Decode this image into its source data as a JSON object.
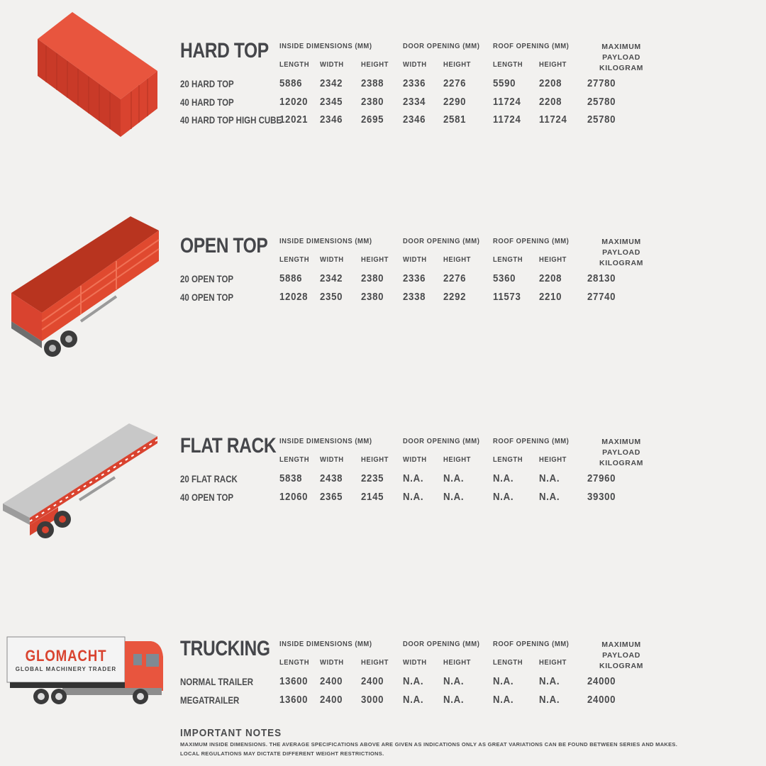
{
  "colors": {
    "container_red": "#d9432f",
    "text": "#4a4b4d",
    "trailer_grey": "#c3c3c3",
    "background": "#f2f1ef"
  },
  "headers": {
    "inside": "INSIDE DIMENSIONS (MM)",
    "door": "DOOR OPENING (MM)",
    "roof": "ROOF OPENING (MM)",
    "payload_line1": "MAXIMUM PAYLOAD",
    "payload_line2": "KILOGRAM",
    "sub": [
      "LENGTH",
      "WIDTH",
      "HEIGHT",
      "WIDTH",
      "HEIGHT",
      "LENGTH",
      "HEIGHT"
    ]
  },
  "sections": [
    {
      "title": "HARD TOP",
      "illustration": "hard-top-container",
      "rows": [
        {
          "label": "20 HARD TOP",
          "values": [
            "5886",
            "2342",
            "2388",
            "2336",
            "2276",
            "5590",
            "2208",
            "27780"
          ]
        },
        {
          "label": "40 HARD TOP",
          "values": [
            "12020",
            "2345",
            "2380",
            "2334",
            "2290",
            "11724",
            "2208",
            "25780"
          ]
        },
        {
          "label": "40 HARD TOP HIGH CUBE",
          "values": [
            "12021",
            "2346",
            "2695",
            "2346",
            "2581",
            "11724",
            "11724",
            "25780"
          ]
        }
      ]
    },
    {
      "title": "OPEN TOP",
      "illustration": "open-top-trailer",
      "rows": [
        {
          "label": "20 OPEN TOP",
          "values": [
            "5886",
            "2342",
            "2380",
            "2336",
            "2276",
            "5360",
            "2208",
            "28130"
          ]
        },
        {
          "label": "40 OPEN TOP",
          "values": [
            "12028",
            "2350",
            "2380",
            "2338",
            "2292",
            "11573",
            "2210",
            "27740"
          ]
        }
      ]
    },
    {
      "title": "FLAT RACK",
      "illustration": "flat-rack-trailer",
      "rows": [
        {
          "label": "20 FLAT RACK",
          "values": [
            "5838",
            "2438",
            "2235",
            "N.A.",
            "N.A.",
            "N.A.",
            "N.A.",
            "27960"
          ]
        },
        {
          "label": "40 OPEN TOP",
          "values": [
            "12060",
            "2365",
            "2145",
            "N.A.",
            "N.A.",
            "N.A.",
            "N.A.",
            "39300"
          ]
        }
      ]
    },
    {
      "title": "TRUCKING",
      "illustration": "truck",
      "rows": [
        {
          "label": "NORMAL TRAILER",
          "values": [
            "13600",
            "2400",
            "2400",
            "N.A.",
            "N.A.",
            "N.A.",
            "N.A.",
            "24000"
          ]
        },
        {
          "label": "MEGATRAILER",
          "values": [
            "13600",
            "2400",
            "3000",
            "N.A.",
            "N.A.",
            "N.A.",
            "N.A.",
            "24000"
          ]
        }
      ]
    }
  ],
  "truck_logo": {
    "brand": "GLOMACHT",
    "tagline": "GLOBAL MACHINERY TRADER"
  },
  "notes": {
    "title": "IMPORTANT NOTES",
    "line1": "MAXIMUM INSIDE DIMENSIONS. THE AVERAGE SPECIFICATIONS ABOVE ARE GIVEN AS INDICATIONS ONLY AS GREAT VARIATIONS CAN BE FOUND BETWEEN SERIES AND MAKES.",
    "line2": "LOCAL REGULATIONS MAY DICTATE DIFFERENT WEIGHT RESTRICTIONS."
  }
}
